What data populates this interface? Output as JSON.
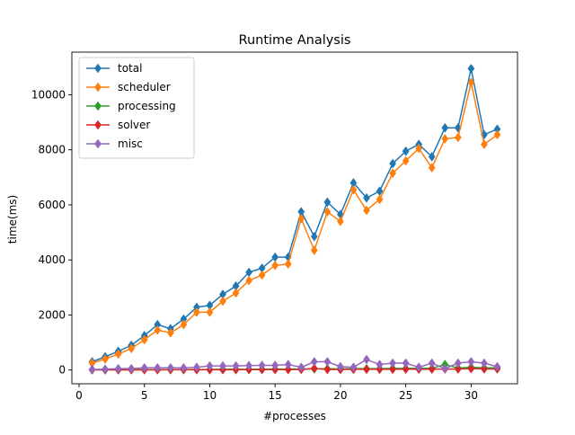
{
  "chart_data": {
    "type": "line",
    "title": "Runtime Analysis",
    "xlabel": "#processes",
    "ylabel": "time(ms)",
    "xlim": [
      -0.55,
      33.55
    ],
    "ylim": [
      -500,
      11550
    ],
    "xticks": [
      0,
      5,
      10,
      15,
      20,
      25,
      30
    ],
    "yticks": [
      0,
      2000,
      4000,
      6000,
      8000,
      10000
    ],
    "grid": false,
    "legend_position": "upper left",
    "x": [
      1,
      2,
      3,
      4,
      5,
      6,
      7,
      8,
      9,
      10,
      11,
      12,
      13,
      14,
      15,
      16,
      17,
      18,
      19,
      20,
      21,
      22,
      23,
      24,
      25,
      26,
      27,
      28,
      29,
      30,
      31,
      32
    ],
    "series": [
      {
        "name": "total",
        "color": "#1f77b4",
        "values": [
          300,
          480,
          680,
          900,
          1250,
          1650,
          1500,
          1850,
          2280,
          2350,
          2750,
          3050,
          3550,
          3700,
          4100,
          4100,
          5750,
          4850,
          6100,
          5650,
          6800,
          6250,
          6500,
          7500,
          7950,
          8200,
          7750,
          8800,
          8800,
          10950,
          8550,
          8750
        ]
      },
      {
        "name": "scheduler",
        "color": "#ff7f0e",
        "values": [
          250,
          400,
          580,
          780,
          1100,
          1450,
          1350,
          1650,
          2100,
          2100,
          2500,
          2800,
          3250,
          3450,
          3800,
          3850,
          5500,
          4350,
          5750,
          5400,
          6550,
          5800,
          6200,
          7150,
          7600,
          8050,
          7350,
          8400,
          8450,
          10450,
          8200,
          8550
        ]
      },
      {
        "name": "processing",
        "color": "#2ca02c",
        "values": [
          10,
          10,
          12,
          12,
          15,
          15,
          15,
          20,
          20,
          20,
          25,
          25,
          25,
          30,
          30,
          30,
          40,
          40,
          45,
          40,
          50,
          45,
          50,
          60,
          60,
          65,
          60,
          200,
          70,
          100,
          80,
          80
        ]
      },
      {
        "name": "solver",
        "color": "#d62728",
        "values": [
          5,
          5,
          5,
          8,
          8,
          8,
          10,
          10,
          10,
          10,
          12,
          12,
          15,
          15,
          15,
          15,
          20,
          60,
          20,
          20,
          25,
          25,
          25,
          25,
          30,
          30,
          30,
          35,
          35,
          50,
          40,
          40
        ]
      },
      {
        "name": "misc",
        "color": "#9467bd",
        "values": [
          20,
          30,
          50,
          50,
          80,
          80,
          80,
          80,
          100,
          150,
          150,
          150,
          160,
          170,
          170,
          200,
          100,
          300,
          300,
          120,
          100,
          380,
          200,
          250,
          250,
          100,
          250,
          50,
          250,
          300,
          250,
          120
        ]
      }
    ]
  }
}
